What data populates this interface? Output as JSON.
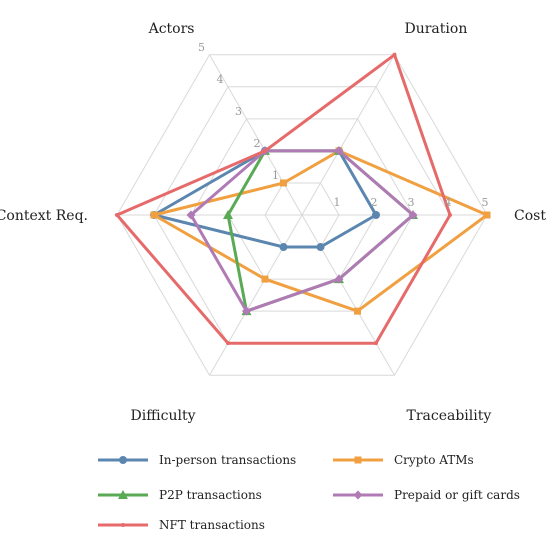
{
  "chart_data": {
    "type": "radar",
    "title": "",
    "axes": [
      "Actors",
      "Duration",
      "Cost",
      "Traceability",
      "Difficulty",
      "Context Req."
    ],
    "ticks": [
      1,
      2,
      3,
      4,
      5
    ],
    "range": [
      0,
      5
    ],
    "grid": true,
    "legend_position": "bottom",
    "series": [
      {
        "name": "In-person transactions",
        "color": "#5b86b0",
        "marker": "circle",
        "values": [
          2,
          2,
          2,
          1,
          1,
          4
        ]
      },
      {
        "name": "Crypto ATMs",
        "color": "#f0a040",
        "marker": "square",
        "values": [
          1,
          2,
          5,
          3,
          2,
          4
        ]
      },
      {
        "name": "P2P transactions",
        "color": "#5aaa55",
        "marker": "triangle",
        "values": [
          2,
          2,
          3,
          2,
          3,
          2
        ]
      },
      {
        "name": "Prepaid or gift cards",
        "color": "#b07ab5",
        "marker": "diamond",
        "values": [
          2,
          2,
          3,
          2,
          3,
          3
        ]
      },
      {
        "name": "NFT transactions",
        "color": "#e66a6a",
        "marker": "dot",
        "values": [
          2,
          5,
          4,
          4,
          4,
          5
        ]
      }
    ]
  }
}
